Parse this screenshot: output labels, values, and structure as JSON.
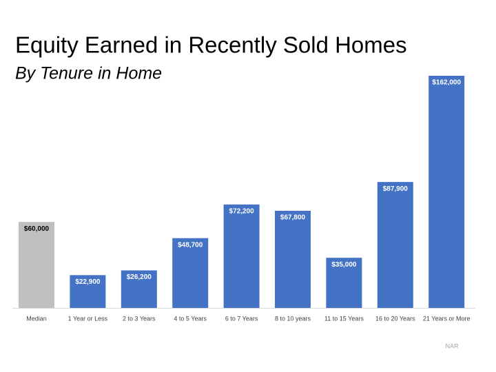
{
  "chart_data": {
    "type": "bar",
    "title": "Equity Earned in Recently Sold Homes",
    "subtitle": "By Tenure in Home",
    "categories": [
      "Median",
      "1 Year or Less",
      "2 to 3 Years",
      "4 to 5 Years",
      "6 to 7 Years",
      "8 to 10 years",
      "11 to 15 Years",
      "16 to 20 Years",
      "21 Years or More"
    ],
    "values": [
      60000,
      22900,
      26200,
      48700,
      72200,
      67800,
      35000,
      87900,
      162000
    ],
    "value_labels": [
      "$60,000",
      "$22,900",
      "$26,200",
      "$48,700",
      "$72,200",
      "$67,800",
      "$35,000",
      "$87,900",
      "$162,000"
    ],
    "colors": [
      "#bfbfbf",
      "#4472c4",
      "#4472c4",
      "#4472c4",
      "#4472c4",
      "#4472c4",
      "#4472c4",
      "#4472c4",
      "#4472c4"
    ],
    "source": "NAR"
  }
}
